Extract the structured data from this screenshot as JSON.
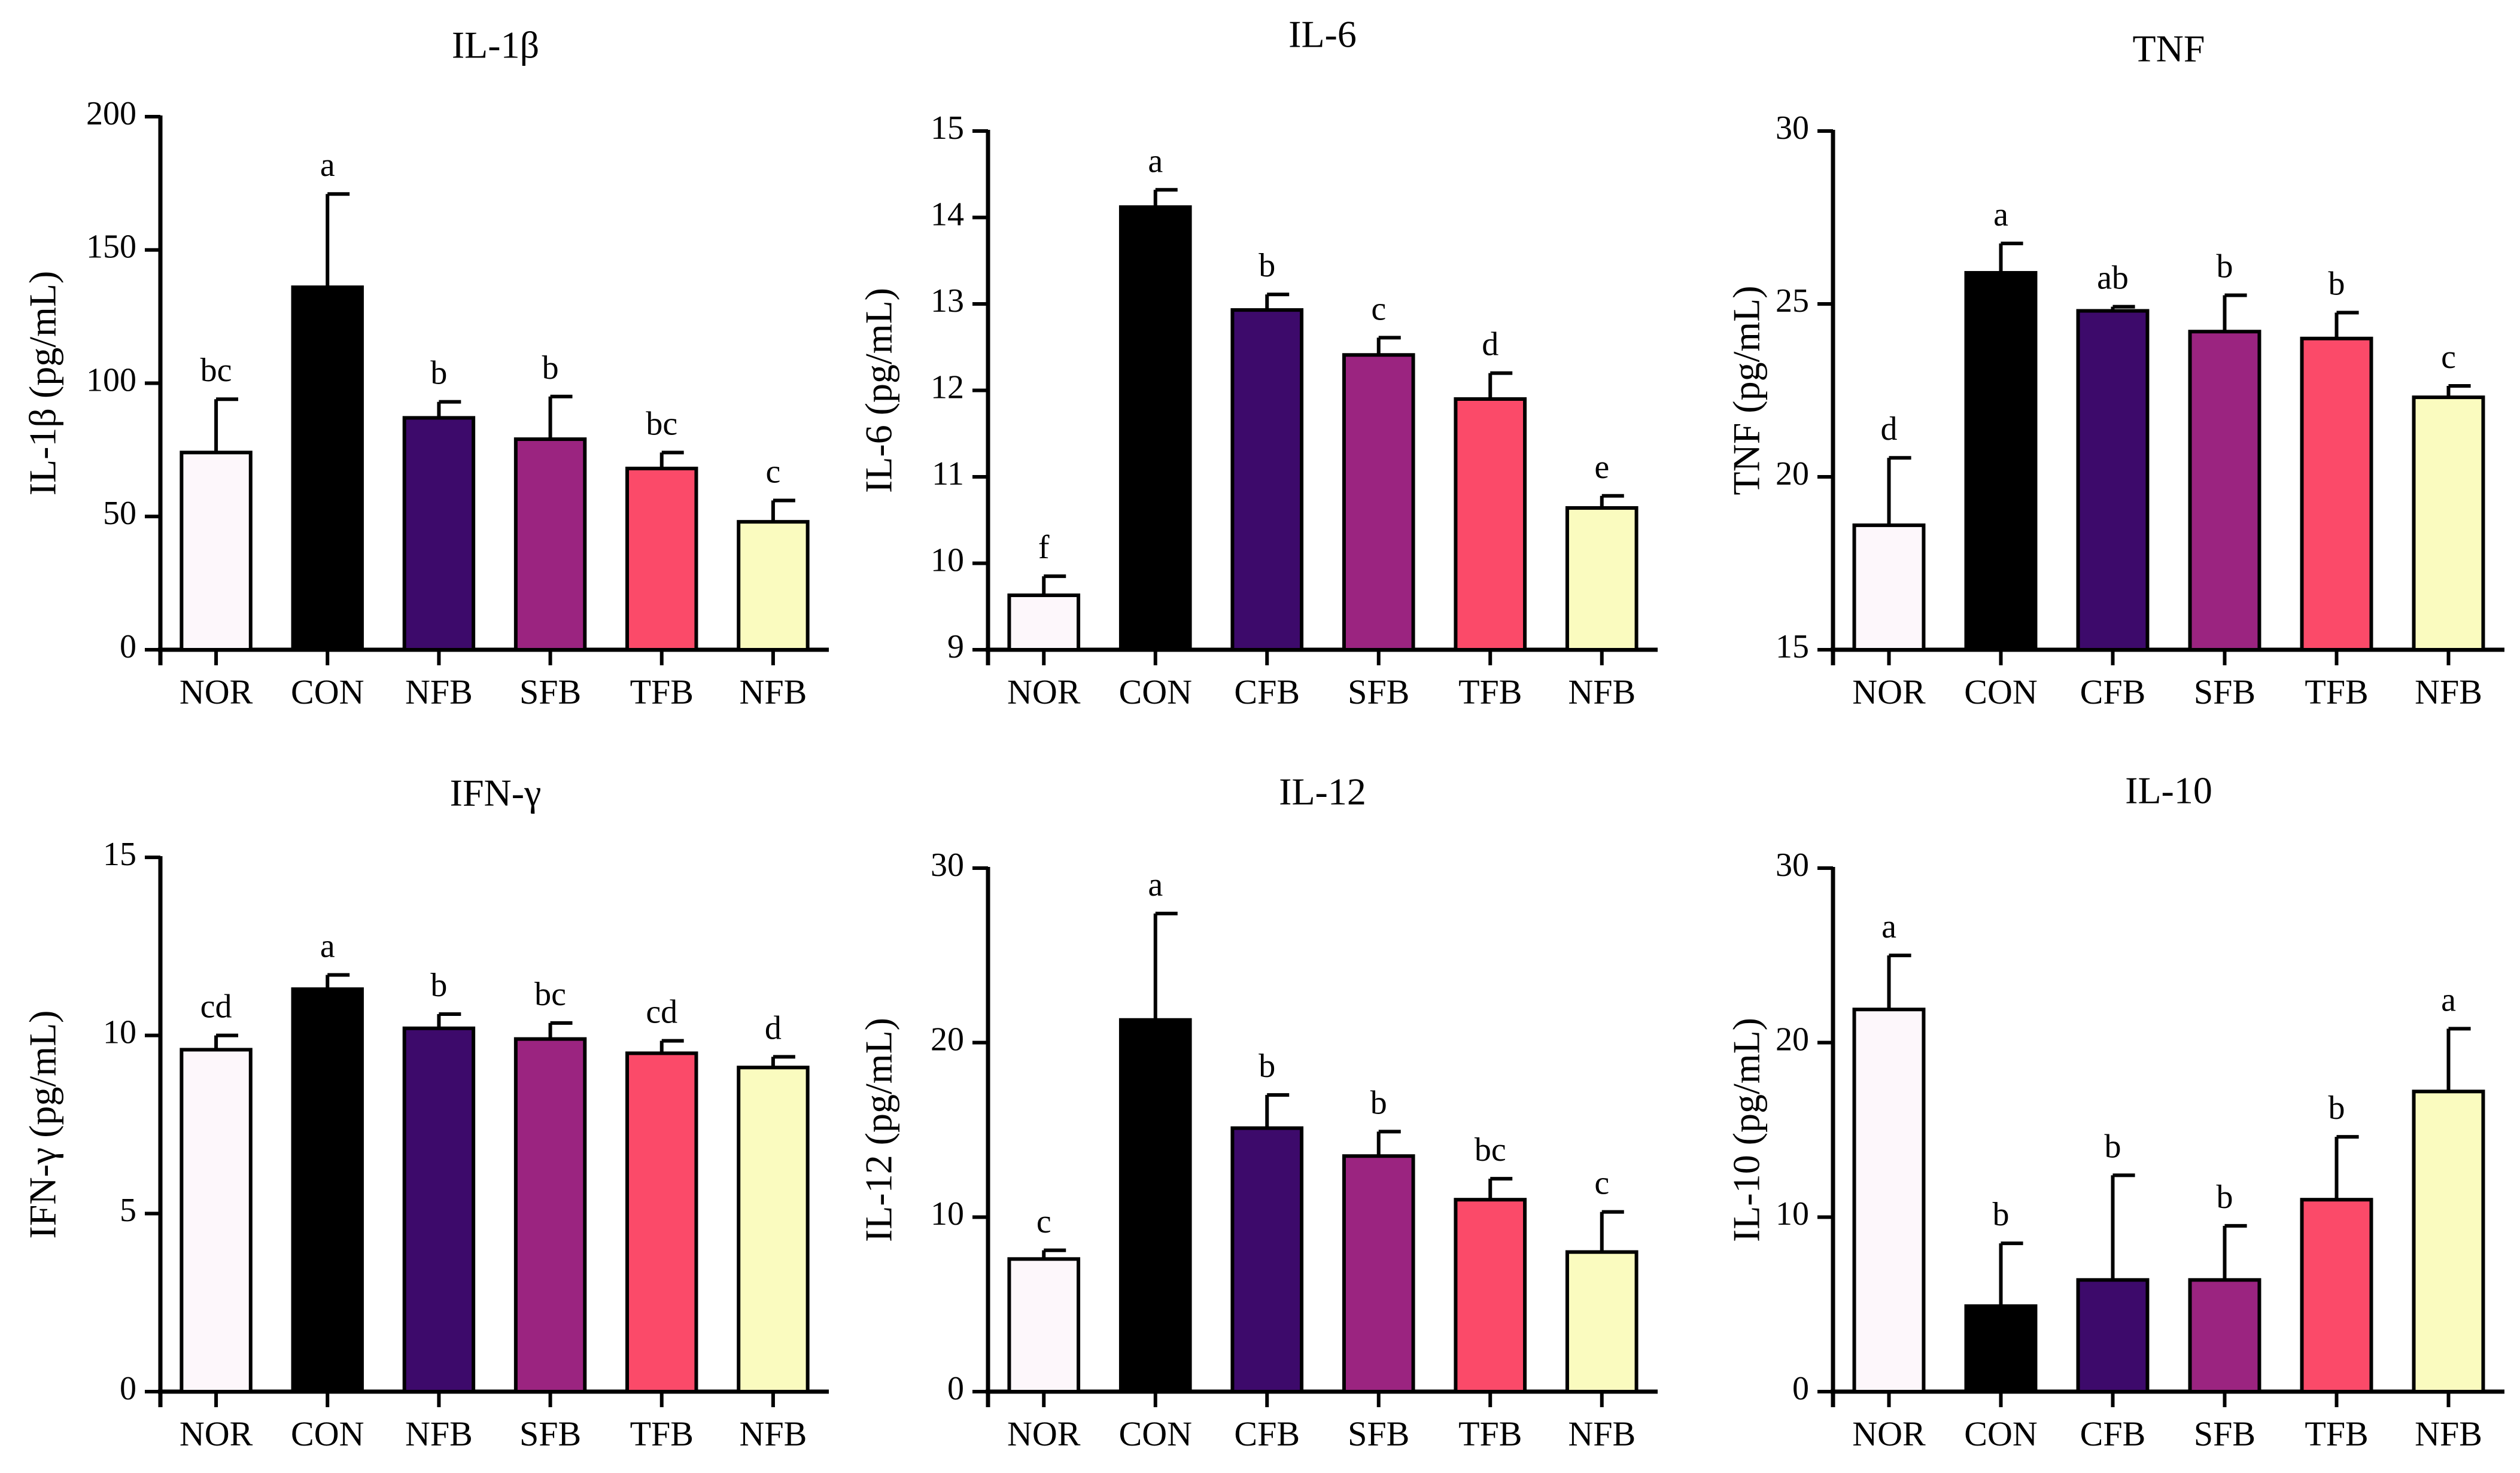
{
  "colors": [
    "#fdf7fb",
    "#000000",
    "#3d0a6b",
    "#9b2480",
    "#fb4a69",
    "#fafbbf"
  ],
  "chart_data": [
    {
      "type": "bar",
      "title": "IL-1β",
      "ylabel": "IL-1β (pg/mL)",
      "ylim": [
        0,
        200
      ],
      "yticks": [
        "0",
        "50",
        "100",
        "150",
        "200"
      ],
      "categories": [
        "NOR",
        "CON",
        "NFB",
        "SFB",
        "TFB",
        "NFB"
      ],
      "values": [
        74,
        136,
        87,
        79,
        68,
        48
      ],
      "errors": [
        20,
        35,
        6,
        16,
        6,
        8
      ],
      "labels": [
        "bc",
        "a",
        "b",
        "b",
        "bc",
        "c"
      ]
    },
    {
      "type": "bar",
      "title": "IL-6",
      "ylabel": "IL-6 (pg/mL)",
      "ylim": [
        9,
        15
      ],
      "yticks": [
        "9",
        "10",
        "11",
        "12",
        "13",
        "14",
        "15"
      ],
      "categories": [
        "NOR",
        "CON",
        "CFB",
        "SFB",
        "TFB",
        "NFB"
      ],
      "values": [
        9.63,
        14.12,
        12.93,
        12.41,
        11.9,
        10.64
      ],
      "errors": [
        0.22,
        0.2,
        0.18,
        0.2,
        0.3,
        0.14
      ],
      "labels": [
        "f",
        "a",
        "b",
        "c",
        "d",
        "e"
      ]
    },
    {
      "type": "bar",
      "title": "TNF",
      "ylabel": "TNF (pg/mL)",
      "ylim": [
        15,
        30
      ],
      "yticks": [
        "15",
        "20",
        "25",
        "30"
      ],
      "categories": [
        "NOR",
        "CON",
        "CFB",
        "SFB",
        "TFB",
        "NFB"
      ],
      "values": [
        18.6,
        25.9,
        24.8,
        24.2,
        24.0,
        22.3
      ],
      "errors": [
        1.95,
        0.85,
        0.12,
        1.05,
        0.75,
        0.33
      ],
      "labels": [
        "d",
        "a",
        "ab",
        "b",
        "b",
        "c"
      ]
    },
    {
      "type": "bar",
      "title": "IFN-γ",
      "ylabel": "IFN-γ (pg/mL)",
      "ylim": [
        0,
        15
      ],
      "yticks": [
        "0",
        "5",
        "10",
        "15"
      ],
      "categories": [
        "NOR",
        "CON",
        "NFB",
        "SFB",
        "TFB",
        "NFB"
      ],
      "values": [
        9.6,
        11.3,
        10.2,
        9.9,
        9.5,
        9.1
      ],
      "errors": [
        0.4,
        0.4,
        0.4,
        0.45,
        0.35,
        0.3
      ],
      "labels": [
        "cd",
        "a",
        "b",
        "bc",
        "cd",
        "d"
      ]
    },
    {
      "type": "bar",
      "title": "IL-12",
      "ylabel": "IL-12 (pg/mL)",
      "ylim": [
        0,
        30
      ],
      "yticks": [
        "0",
        "10",
        "20",
        "30"
      ],
      "categories": [
        "NOR",
        "CON",
        "CFB",
        "SFB",
        "TFB",
        "NFB"
      ],
      "values": [
        7.6,
        21.3,
        15.1,
        13.5,
        11.0,
        8.0
      ],
      "errors": [
        0.5,
        6.1,
        1.9,
        1.4,
        1.2,
        2.3
      ],
      "labels": [
        "c",
        "a",
        "b",
        "b",
        "bc",
        "c"
      ]
    },
    {
      "type": "bar",
      "title": "IL-10",
      "ylabel": "IL-10 (pg/mL)",
      "ylim": [
        0,
        30
      ],
      "yticks": [
        "0",
        "10",
        "20",
        "30"
      ],
      "categories": [
        "NOR",
        "CON",
        "CFB",
        "SFB",
        "TFB",
        "NFB"
      ],
      "values": [
        21.9,
        4.9,
        6.4,
        6.4,
        11.0,
        17.2
      ],
      "errors": [
        3.1,
        3.6,
        6.0,
        3.1,
        3.6,
        3.6
      ],
      "labels": [
        "a",
        "b",
        "b",
        "b",
        "b",
        "a"
      ]
    }
  ]
}
